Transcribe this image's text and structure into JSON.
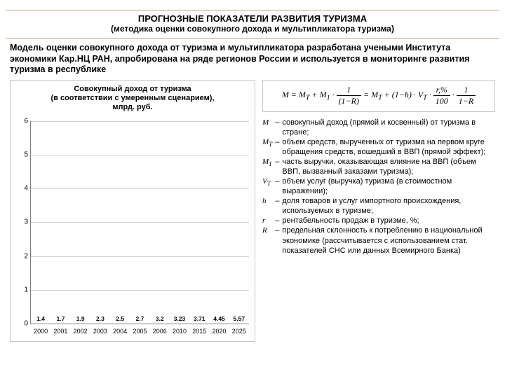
{
  "header": {
    "title": "ПРОГНОЗНЫЕ ПОКАЗАТЕЛИ РАЗВИТИЯ ТУРИЗМА",
    "subtitle": "(методика оценки совокупного дохода и мультипликатора туризма)"
  },
  "intro": "Модель оценки совокупного дохода от туризма и мультипликатора разработана учеными Института экономики Кар.НЦ РАН, апробирована на ряде регионов России и используется в мониторинге развития туризма в республике",
  "chart": {
    "type": "bar",
    "title_line1": "Совокупный доход от туризма",
    "title_line2": "(в соответствии с умеренным сценарием),",
    "title_line3": "млрд. руб.",
    "categories": [
      "2000",
      "2001",
      "2002",
      "2003",
      "2004",
      "2005",
      "2006",
      "2010",
      "2015",
      "2020",
      "2025"
    ],
    "values": [
      1.4,
      1.7,
      1.9,
      2.3,
      2.5,
      2.7,
      3.2,
      3.23,
      3.71,
      4.45,
      5.57
    ],
    "bar_colors": [
      "#2fa54a",
      "#2fa54a",
      "#2fa54a",
      "#2fa54a",
      "#2fa54a",
      "#2fa54a",
      "#2fa54a",
      "#7f1fbf",
      "#2fa54a",
      "#2fa54a",
      "#2fa54a"
    ],
    "ylim": [
      0,
      6
    ],
    "ytick_step": 1,
    "grid_color": "#d0d0d0",
    "axis_color": "#808080",
    "background_color": "#ffffff",
    "label_fontsize": 8.5,
    "axis_fontsize": 10
  },
  "formula": {
    "lhs": "M = M",
    "sub_t": "T",
    "plus_m1": " + M",
    "sub_1": "1",
    "dot": " · ",
    "frac1_num": "1",
    "frac1_den": "(1−R)",
    "eq2": " = M",
    "plus2": " + (1−h) · V",
    "r_pct_num": "r,%",
    "r_pct_den": "100",
    "frac2_num": "1",
    "frac2_den": "1−R"
  },
  "legend": {
    "rows": [
      {
        "sym": "M",
        "txt": "совокупный доход (прямой и косвенный) от туризма в стране;"
      },
      {
        "sym": "M<sub>T</sub>",
        "txt": "объем средств, вырученных от туризма на первом круге обращения средств, вошедший в ВВП (прямой эффект);"
      },
      {
        "sym": "M<sub>1</sub>",
        "txt": "часть выручки, оказывающая влияние на ВВП (объем ВВП, вызванный заказами туризма);"
      },
      {
        "sym": "V<sub>T</sub>",
        "txt": "объем услуг (выручка) туризма (в стоимостном выражении);"
      },
      {
        "sym": "h",
        "txt": "доля товаров и услуг импортного происхождения, используемых в туризме;"
      },
      {
        "sym": "r",
        "txt": "рентабельность продаж в туризме, %;"
      },
      {
        "sym": "R",
        "txt": "предельная склонность к потреблению в национальной экономике (рассчитывается с использованием стат. показателей СНС или данных Всемирного Банка)"
      }
    ]
  }
}
